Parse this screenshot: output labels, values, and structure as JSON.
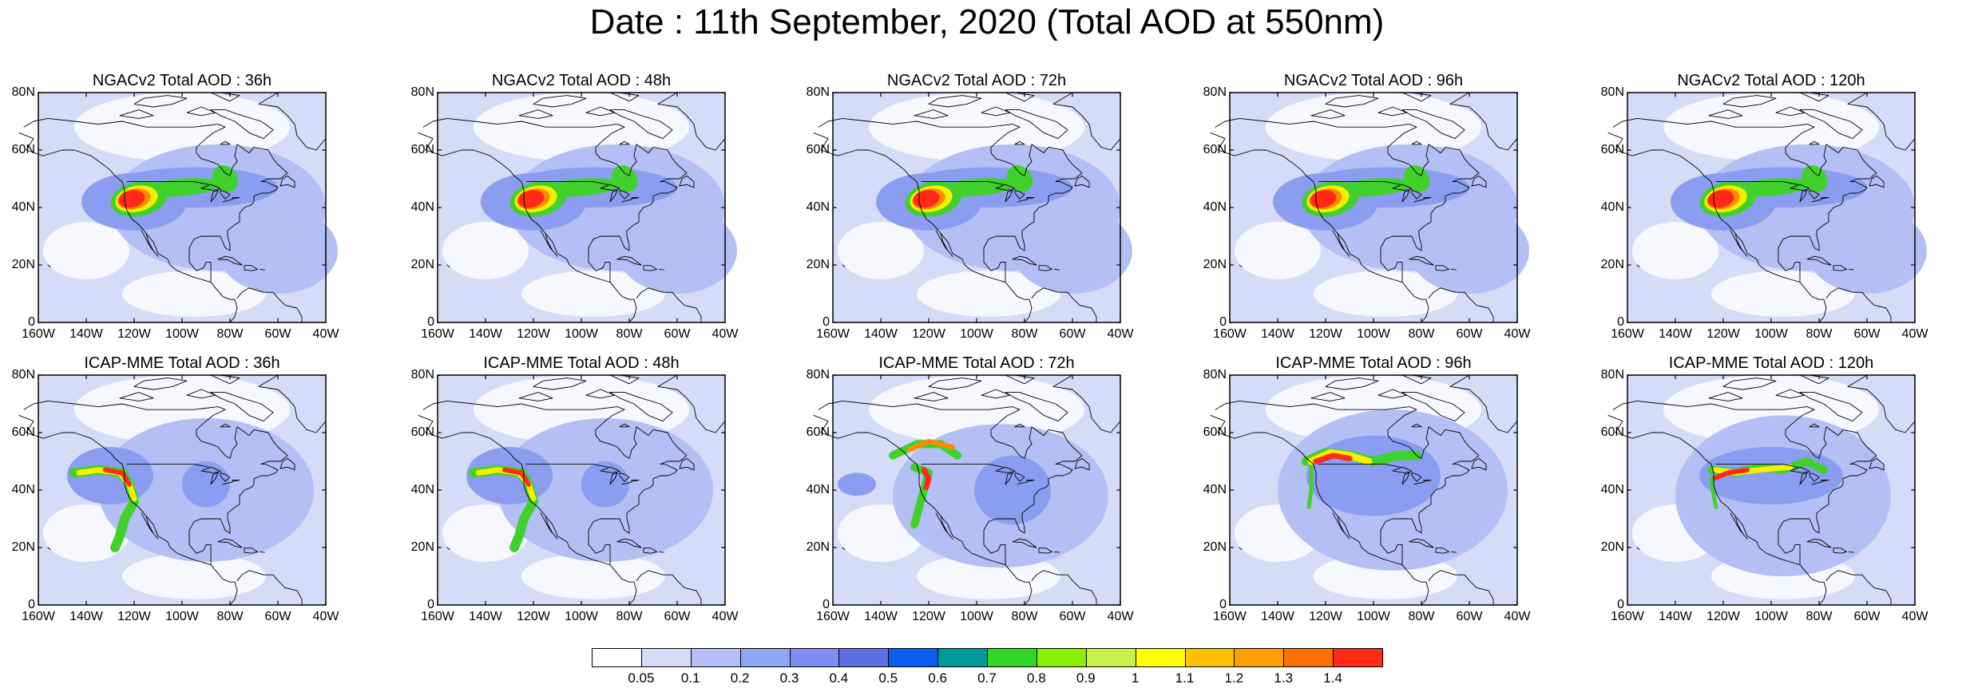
{
  "title": "Date : 11th September, 2020 (Total AOD at 550nm)",
  "colors": {
    "background_map": "#d6dcf8",
    "land_clear": "#f7f8ff",
    "low": "#b3bff5",
    "mid": "#8b9df0",
    "high_blue": "#5e6fe6",
    "green": "#41d02c",
    "yellow": "#f6f000",
    "orange": "#ff8b00",
    "red": "#ff2a17",
    "coastline": "#000000"
  },
  "lat_ticks": [
    "80N",
    "60N",
    "40N",
    "20N",
    "0"
  ],
  "lon_ticks": [
    "160W",
    "140W",
    "120W",
    "100W",
    "80W",
    "60W",
    "40W"
  ],
  "panels": [
    {
      "title": "NGACv2 Total AOD : 36h",
      "model": "NGACv2",
      "forecast_hour": "36h",
      "pattern": "ngac"
    },
    {
      "title": "NGACv2 Total AOD : 48h",
      "model": "NGACv2",
      "forecast_hour": "48h",
      "pattern": "ngac"
    },
    {
      "title": "NGACv2 Total AOD : 72h",
      "model": "NGACv2",
      "forecast_hour": "72h",
      "pattern": "ngac"
    },
    {
      "title": "NGACv2 Total AOD : 96h",
      "model": "NGACv2",
      "forecast_hour": "96h",
      "pattern": "ngac"
    },
    {
      "title": "NGACv2 Total AOD : 120h",
      "model": "NGACv2",
      "forecast_hour": "120h",
      "pattern": "ngac"
    },
    {
      "title": "ICAP-MME Total AOD : 36h",
      "model": "ICAP-MME",
      "forecast_hour": "36h",
      "pattern": "icap_hook"
    },
    {
      "title": "ICAP-MME Total AOD : 48h",
      "model": "ICAP-MME",
      "forecast_hour": "48h",
      "pattern": "icap_hook"
    },
    {
      "title": "ICAP-MME Total AOD : 72h",
      "model": "ICAP-MME",
      "forecast_hour": "72h",
      "pattern": "icap_arc"
    },
    {
      "title": "ICAP-MME Total AOD : 96h",
      "model": "ICAP-MME",
      "forecast_hour": "96h",
      "pattern": "icap_band"
    },
    {
      "title": "ICAP-MME Total AOD : 120h",
      "model": "ICAP-MME",
      "forecast_hour": "120h",
      "pattern": "icap_east"
    }
  ],
  "colorbar": {
    "labels": [
      "0.05",
      "0.1",
      "0.2",
      "0.3",
      "0.4",
      "0.5",
      "0.6",
      "0.7",
      "0.8",
      "0.9",
      "1",
      "1.1",
      "1.2",
      "1.3",
      "1.4"
    ],
    "colors": [
      "#ffffff",
      "#d6dcf8",
      "#b3bff5",
      "#8fa6f2",
      "#7f8cf0",
      "#5e6fe6",
      "#0a5df0",
      "#009999",
      "#33d622",
      "#88f000",
      "#c6f24a",
      "#ffff00",
      "#ffc000",
      "#ffa000",
      "#ff7000",
      "#ff2a17"
    ]
  }
}
